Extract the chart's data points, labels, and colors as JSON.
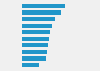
{
  "values": [
    82,
    74,
    63,
    56,
    53,
    51,
    49,
    47,
    45,
    32
  ],
  "bar_color": "#2196c9",
  "background_color": "#f0f0f0",
  "plot_bg_color": "#f0f0f0",
  "xlim": [
    0,
    100
  ],
  "bar_height": 0.65,
  "figsize": [
    1.0,
    0.71
  ],
  "dpi": 100
}
